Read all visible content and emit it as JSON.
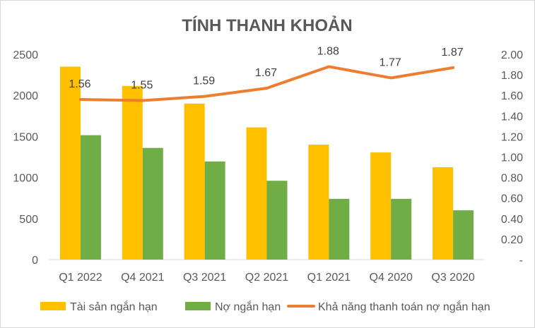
{
  "chart_data": {
    "type": "bar",
    "title": "TÍNH THANH KHOẢN",
    "categories": [
      "Q1 2022",
      "Q4 2021",
      "Q3 2021",
      "Q2 2021",
      "Q1 2021",
      "Q4 2020",
      "Q3 2020"
    ],
    "series": [
      {
        "name": "Tài sản ngắn hạn",
        "type": "bar",
        "axis": "left",
        "color": "#FFC000",
        "values": [
          2350,
          2115,
          1900,
          1610,
          1400,
          1305,
          1125
        ]
      },
      {
        "name": "Nợ ngắn hạn",
        "type": "bar",
        "axis": "left",
        "color": "#70AD47",
        "values": [
          1515,
          1360,
          1195,
          960,
          740,
          740,
          600
        ]
      },
      {
        "name": "Khả năng thanh toán nợ ngắn hạn",
        "type": "line",
        "axis": "right",
        "color": "#ED7D31",
        "values": [
          1.56,
          1.55,
          1.59,
          1.67,
          1.88,
          1.77,
          1.87
        ],
        "labels": [
          "1.56",
          "1.55",
          "1.59",
          "1.67",
          "1.88",
          "1.77",
          "1.87"
        ]
      }
    ],
    "y_left": {
      "min": 0,
      "max": 2500,
      "step": 500,
      "ticks": [
        "0",
        "500",
        "1000",
        "1500",
        "2000",
        "2500"
      ]
    },
    "y_right": {
      "min": 0,
      "max": 2.0,
      "step": 0.2,
      "ticks": [
        "-",
        "0.20",
        "0.40",
        "0.60",
        "0.80",
        "1.00",
        "1.20",
        "1.40",
        "1.60",
        "1.80",
        "2.00"
      ]
    },
    "grid": false,
    "legend_position": "bottom"
  }
}
